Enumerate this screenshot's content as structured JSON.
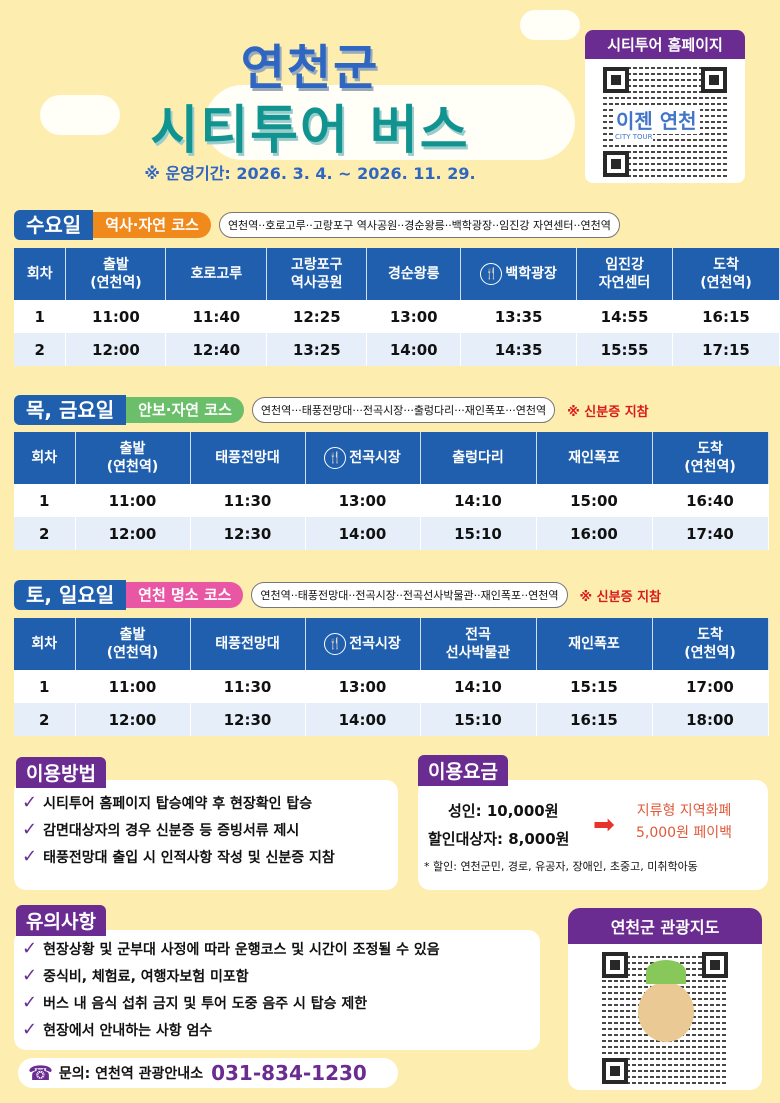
{
  "header": {
    "title_line1": "연천군",
    "title_line2": "시티투어 버스",
    "period": "※ 운영기간: 2026. 3. 4. ~ 2026. 11. 29."
  },
  "qr_homepage": {
    "label": "시티투어 홈페이지",
    "logo_text": "이젠 연천",
    "logo_sub": "CITY TOUR"
  },
  "qr_map": {
    "label": "연천군 관광지도"
  },
  "colors": {
    "blue": "#1f5fae",
    "purple": "#6a2c91",
    "orange": "#f08a1c",
    "green": "#6cbf6a",
    "pink": "#e957a4",
    "red": "#d81b1b",
    "background": "#fdeeb0"
  },
  "schedules": [
    {
      "day": "수요일",
      "course": "역사·자연 코스",
      "course_color": "#f08a1c",
      "route": "연천역··호로고루··고랑포구 역사공원··경순왕릉··백학광장··임진강 자연센터··연천역",
      "note": "",
      "columns": [
        {
          "label": "회차"
        },
        {
          "label": "출발\n(연천역)"
        },
        {
          "label": "호로고루"
        },
        {
          "label": "고랑포구\n역사공원"
        },
        {
          "label": "경순왕릉"
        },
        {
          "label": "백학광장",
          "meal": true
        },
        {
          "label": "임진강\n자연센터"
        },
        {
          "label": "도착\n(연천역)"
        }
      ],
      "rows": [
        [
          "1",
          "11:00",
          "11:40",
          "12:25",
          "13:00",
          "13:35",
          "14:55",
          "16:15"
        ],
        [
          "2",
          "12:00",
          "12:40",
          "13:25",
          "14:00",
          "14:35",
          "15:55",
          "17:15"
        ]
      ]
    },
    {
      "day": "목, 금요일",
      "course": "안보·자연 코스",
      "course_color": "#6cbf6a",
      "route": "연천역···태풍전망대···전곡시장···출렁다리···재인폭포···연천역",
      "note": "※ 신분증 지참",
      "columns": [
        {
          "label": "회차"
        },
        {
          "label": "출발\n(연천역)"
        },
        {
          "label": "태풍전망대"
        },
        {
          "label": "전곡시장",
          "meal": true
        },
        {
          "label": "출렁다리"
        },
        {
          "label": "재인폭포"
        },
        {
          "label": "도착\n(연천역)"
        }
      ],
      "rows": [
        [
          "1",
          "11:00",
          "11:30",
          "13:00",
          "14:10",
          "15:00",
          "16:40"
        ],
        [
          "2",
          "12:00",
          "12:30",
          "14:00",
          "15:10",
          "16:00",
          "17:40"
        ]
      ]
    },
    {
      "day": "토, 일요일",
      "course": "연천 명소 코스",
      "course_color": "#e957a4",
      "route": "연천역··태풍전망대··전곡시장··전곡선사박물관··재인폭포··연천역",
      "note": "※ 신분증 지참",
      "columns": [
        {
          "label": "회차"
        },
        {
          "label": "출발\n(연천역)"
        },
        {
          "label": "태풍전망대"
        },
        {
          "label": "전곡시장",
          "meal": true
        },
        {
          "label": "전곡\n선사박물관"
        },
        {
          "label": "재인폭포"
        },
        {
          "label": "도착\n(연천역)"
        }
      ],
      "rows": [
        [
          "1",
          "11:00",
          "11:30",
          "13:00",
          "14:10",
          "15:15",
          "17:00"
        ],
        [
          "2",
          "12:00",
          "12:30",
          "14:00",
          "15:10",
          "16:15",
          "18:00"
        ]
      ]
    }
  ],
  "usage": {
    "title": "이용방법",
    "items": [
      "시티투어 홈페이지 탑승예약 후 현장확인 탑승",
      "감면대상자의 경우 신분증 등 증빙서류 제시",
      "태풍전망대 출입 시 인적사항 작성 및 신분증 지참"
    ]
  },
  "fees": {
    "title": "이용요금",
    "adult": "성인: 10,000원",
    "discount": "할인대상자: 8,000원",
    "payback_line1": "지류형 지역화폐",
    "payback_line2": "5,000원 페이백",
    "discount_note": "* 할인: 연천군민, 경로, 유공자, 장애인, 초중고, 미취학아동"
  },
  "notices": {
    "title": "유의사항",
    "items": [
      "현장상황 및 군부대 사정에 따라 운행코스 및 시간이 조정될 수 있음",
      "중식비, 체험료, 여행자보험 미포함",
      "버스 내 음식 섭취 금지 및 투어 도중 음주 시 탑승 제한",
      "현장에서 안내하는 사항 엄수"
    ]
  },
  "contact": {
    "label": "문의: 연천역 관광안내소",
    "phone": "031-834-1230"
  }
}
